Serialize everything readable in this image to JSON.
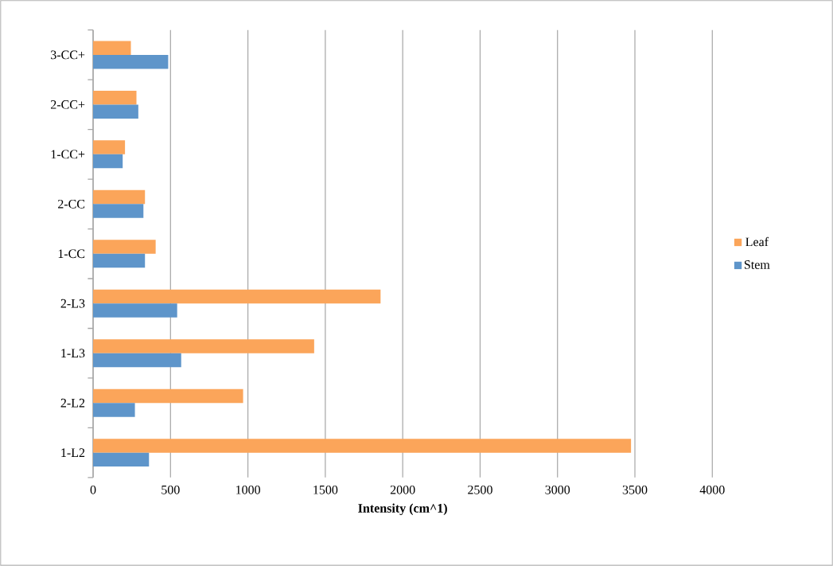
{
  "chart_data": {
    "type": "bar",
    "orientation": "horizontal",
    "xlabel": "Intensity (cm^1)",
    "categories": [
      "3-CC+",
      "2-CC+",
      "1-CC+",
      "2-CC",
      "1-CC",
      "2-L3",
      "1-L3",
      "2-L2",
      "1-L2"
    ],
    "series": [
      {
        "name": "Leaf",
        "color": "#fba55a",
        "values": [
          244,
          280,
          206,
          335,
          404,
          1857,
          1428,
          969,
          3475
        ]
      },
      {
        "name": "Stem",
        "color": "#5e95ca",
        "values": [
          485,
          292,
          191,
          325,
          335,
          543,
          569,
          270,
          361
        ]
      }
    ],
    "xlim": [
      0,
      4000
    ],
    "xticks": [
      0,
      500,
      1000,
      1500,
      2000,
      2500,
      3000,
      3500,
      4000
    ],
    "grid": "x",
    "legend": "right"
  }
}
